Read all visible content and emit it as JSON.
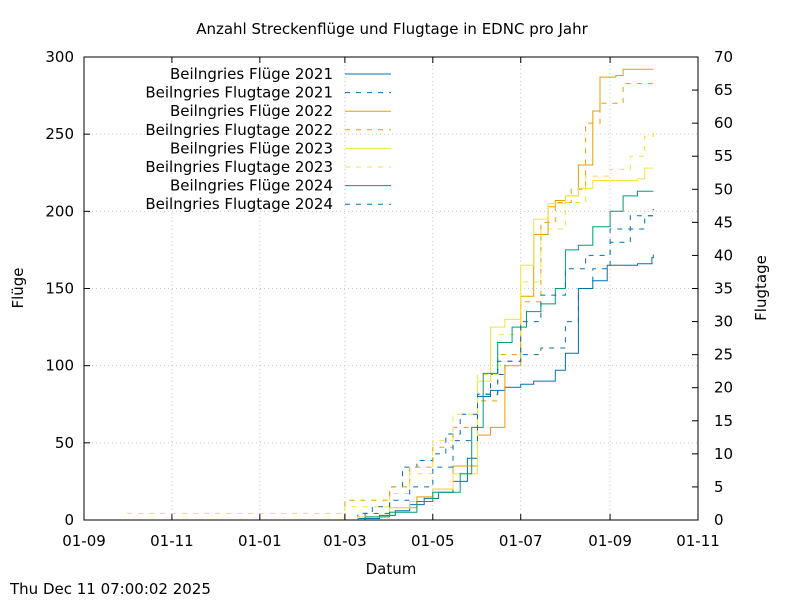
{
  "chart_data": {
    "type": "line",
    "title": "Anzahl Streckenflüge und Flugtage in EDNC pro Jahr",
    "xlabel": "Datum",
    "ylabel": "Flüge",
    "y2label": "Flugtage",
    "x_ticks": [
      "01-09",
      "01-11",
      "01-01",
      "01-03",
      "01-05",
      "01-07",
      "01-09",
      "01-11"
    ],
    "xlim": [
      "2024-09-01",
      "2025-11-01"
    ],
    "ylim": [
      0,
      300
    ],
    "y_ticks": [
      0,
      50,
      100,
      150,
      200,
      250,
      300
    ],
    "y2lim": [
      0,
      70
    ],
    "y2_ticks": [
      0,
      5,
      10,
      15,
      20,
      25,
      30,
      35,
      40,
      45,
      50,
      55,
      60,
      65,
      70
    ],
    "grid": true,
    "legend_position": "top-left",
    "series": [
      {
        "name": "Beilngries Flüge 2021",
        "axis": "y",
        "style": "solid",
        "color": "#0072b2",
        "points": [
          [
            "2024-10-01",
            0
          ],
          [
            "2025-02-25",
            0
          ],
          [
            "2025-03-10",
            1
          ],
          [
            "2025-03-25",
            3
          ],
          [
            "2025-04-05",
            6
          ],
          [
            "2025-04-15",
            10
          ],
          [
            "2025-04-25",
            14
          ],
          [
            "2025-05-05",
            18
          ],
          [
            "2025-05-15",
            25
          ],
          [
            "2025-05-25",
            40
          ],
          [
            "2025-06-01",
            80
          ],
          [
            "2025-06-10",
            84
          ],
          [
            "2025-06-20",
            86
          ],
          [
            "2025-07-01",
            88
          ],
          [
            "2025-07-10",
            90
          ],
          [
            "2025-07-25",
            97
          ],
          [
            "2025-08-01",
            108
          ],
          [
            "2025-08-10",
            150
          ],
          [
            "2025-08-20",
            155
          ],
          [
            "2025-08-30",
            165
          ],
          [
            "2025-09-20",
            166
          ],
          [
            "2025-09-30",
            170
          ],
          [
            "2025-10-01",
            172
          ]
        ]
      },
      {
        "name": "Beilngries Flugtage 2021",
        "axis": "y2",
        "style": "dashed",
        "color": "#0072b2",
        "points": [
          [
            "2024-10-01",
            0
          ],
          [
            "2025-02-20",
            0
          ],
          [
            "2025-03-10",
            1
          ],
          [
            "2025-03-20",
            2
          ],
          [
            "2025-04-01",
            5
          ],
          [
            "2025-04-10",
            8
          ],
          [
            "2025-04-20",
            9
          ],
          [
            "2025-05-01",
            10
          ],
          [
            "2025-05-10",
            13
          ],
          [
            "2025-05-20",
            16
          ],
          [
            "2025-06-01",
            19
          ],
          [
            "2025-06-10",
            22
          ],
          [
            "2025-06-20",
            24
          ],
          [
            "2025-07-01",
            25
          ],
          [
            "2025-07-15",
            26
          ],
          [
            "2025-08-01",
            30
          ],
          [
            "2025-08-10",
            35
          ],
          [
            "2025-08-20",
            38
          ],
          [
            "2025-09-01",
            42
          ],
          [
            "2025-09-15",
            44
          ],
          [
            "2025-09-25",
            46
          ],
          [
            "2025-10-01",
            47
          ]
        ]
      },
      {
        "name": "Beilngries Flüge 2022",
        "axis": "y",
        "style": "solid",
        "color": "#e69f00",
        "points": [
          [
            "2024-10-01",
            0
          ],
          [
            "2025-03-01",
            0
          ],
          [
            "2025-03-15",
            2
          ],
          [
            "2025-04-01",
            8
          ],
          [
            "2025-04-20",
            15
          ],
          [
            "2025-05-01",
            20
          ],
          [
            "2025-05-15",
            35
          ],
          [
            "2025-06-01",
            55
          ],
          [
            "2025-06-10",
            60
          ],
          [
            "2025-06-20",
            100
          ],
          [
            "2025-07-01",
            145
          ],
          [
            "2025-07-10",
            185
          ],
          [
            "2025-07-20",
            203
          ],
          [
            "2025-07-25",
            207
          ],
          [
            "2025-08-01",
            210
          ],
          [
            "2025-08-10",
            230
          ],
          [
            "2025-08-20",
            265
          ],
          [
            "2025-08-25",
            287
          ],
          [
            "2025-09-05",
            288
          ],
          [
            "2025-09-10",
            292
          ],
          [
            "2025-10-01",
            292
          ]
        ]
      },
      {
        "name": "Beilngries Flugtage 2022",
        "axis": "y2",
        "style": "dashed",
        "color": "#e69f00",
        "points": [
          [
            "2024-10-01",
            0
          ],
          [
            "2025-02-25",
            0
          ],
          [
            "2025-03-01",
            3
          ],
          [
            "2025-04-01",
            5
          ],
          [
            "2025-04-15",
            8
          ],
          [
            "2025-05-01",
            11
          ],
          [
            "2025-05-15",
            14
          ],
          [
            "2025-06-01",
            18
          ],
          [
            "2025-06-15",
            25
          ],
          [
            "2025-07-01",
            33
          ],
          [
            "2025-07-15",
            45
          ],
          [
            "2025-07-25",
            48
          ],
          [
            "2025-08-05",
            50
          ],
          [
            "2025-08-15",
            60
          ],
          [
            "2025-08-25",
            63
          ],
          [
            "2025-09-10",
            66
          ],
          [
            "2025-10-01",
            66
          ]
        ]
      },
      {
        "name": "Beilngries Flüge 2023",
        "axis": "y",
        "style": "solid",
        "color": "#f0e442",
        "points": [
          [
            "2024-10-01",
            0
          ],
          [
            "2025-02-25",
            0
          ],
          [
            "2025-03-10",
            2
          ],
          [
            "2025-04-01",
            8
          ],
          [
            "2025-04-15",
            12
          ],
          [
            "2025-05-01",
            20
          ],
          [
            "2025-05-15",
            30
          ],
          [
            "2025-06-01",
            90
          ],
          [
            "2025-06-10",
            125
          ],
          [
            "2025-06-20",
            130
          ],
          [
            "2025-07-01",
            165
          ],
          [
            "2025-07-10",
            195
          ],
          [
            "2025-07-20",
            205
          ],
          [
            "2025-08-01",
            210
          ],
          [
            "2025-08-10",
            215
          ],
          [
            "2025-08-20",
            220
          ],
          [
            "2025-09-20",
            221
          ],
          [
            "2025-09-25",
            228
          ],
          [
            "2025-10-01",
            228
          ]
        ]
      },
      {
        "name": "Beilngries Flugtage 2023",
        "axis": "y2",
        "style": "dashed",
        "color": "#f0e442",
        "points": [
          [
            "2024-10-01",
            1
          ],
          [
            "2025-02-25",
            1
          ],
          [
            "2025-03-01",
            2
          ],
          [
            "2025-04-01",
            4
          ],
          [
            "2025-04-15",
            7
          ],
          [
            "2025-05-01",
            12
          ],
          [
            "2025-05-15",
            16
          ],
          [
            "2025-06-01",
            22
          ],
          [
            "2025-06-15",
            28
          ],
          [
            "2025-07-01",
            36
          ],
          [
            "2025-07-15",
            44
          ],
          [
            "2025-08-01",
            48
          ],
          [
            "2025-08-15",
            52
          ],
          [
            "2025-09-01",
            53
          ],
          [
            "2025-09-15",
            55
          ],
          [
            "2025-09-25",
            58
          ],
          [
            "2025-10-01",
            59
          ]
        ]
      },
      {
        "name": "Beilngries Flüge 2024",
        "axis": "y",
        "style": "solid",
        "color": "#009e73",
        "points": [
          [
            "2024-10-01",
            0
          ],
          [
            "2025-02-25",
            0
          ],
          [
            "2025-03-15",
            2
          ],
          [
            "2025-04-01",
            5
          ],
          [
            "2025-04-20",
            12
          ],
          [
            "2025-05-01",
            18
          ],
          [
            "2025-05-20",
            30
          ],
          [
            "2025-05-28",
            60
          ],
          [
            "2025-06-05",
            95
          ],
          [
            "2025-06-15",
            115
          ],
          [
            "2025-06-25",
            125
          ],
          [
            "2025-07-05",
            135
          ],
          [
            "2025-07-15",
            140
          ],
          [
            "2025-07-25",
            150
          ],
          [
            "2025-08-01",
            175
          ],
          [
            "2025-08-10",
            178
          ],
          [
            "2025-08-20",
            190
          ],
          [
            "2025-09-01",
            200
          ],
          [
            "2025-09-10",
            210
          ],
          [
            "2025-09-20",
            213
          ],
          [
            "2025-10-01",
            213
          ]
        ]
      },
      {
        "name": "Beilngries Flugtage 2024",
        "axis": "y2",
        "style": "dashed",
        "color": "#0072b2",
        "points": [
          [
            "2024-10-01",
            0
          ],
          [
            "2025-03-01",
            0
          ],
          [
            "2025-03-15",
            1
          ],
          [
            "2025-04-01",
            3
          ],
          [
            "2025-04-15",
            5
          ],
          [
            "2025-05-01",
            8
          ],
          [
            "2025-05-15",
            12
          ],
          [
            "2025-06-01",
            19
          ],
          [
            "2025-06-15",
            24
          ],
          [
            "2025-07-01",
            30
          ],
          [
            "2025-07-15",
            34
          ],
          [
            "2025-08-01",
            38
          ],
          [
            "2025-08-15",
            40
          ],
          [
            "2025-09-01",
            44
          ],
          [
            "2025-09-15",
            46
          ],
          [
            "2025-10-01",
            47
          ]
        ]
      }
    ]
  },
  "footer": {
    "timestamp": "Thu Dec 11 07:00:02 2025"
  }
}
